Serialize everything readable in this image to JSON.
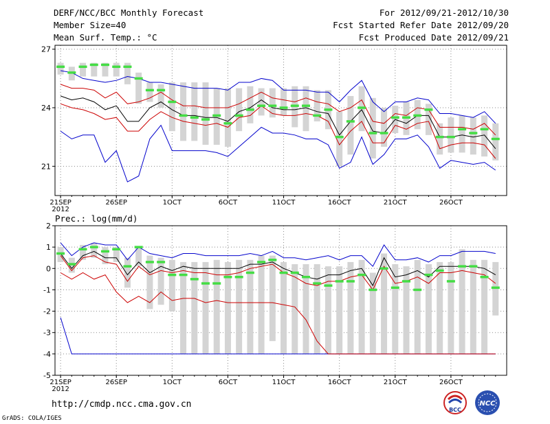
{
  "header": {
    "title": "DERF/NCC/BCC Monthly Forecast",
    "member_size": "Member Size=40",
    "variable": "Mean Surf. Temp.: °C",
    "forecast_period": "For 2012/09/21-2012/10/30",
    "refer_date": "Fcst Started Refer Date 2012/09/20",
    "produced_date": "Fcst Produced Date 2012/09/21"
  },
  "footer": {
    "url": "http://cmdp.ncc.cma.gov.cn",
    "credit": "GrADS: COLA/IGES",
    "logo_bcc_text": "BCC",
    "logo_ncc_text": "NCC"
  },
  "colors": {
    "ensemble_max_min": "#0000cc",
    "spread_lines": "#cc0000",
    "ensemble_mean": "#000000",
    "member_median": "#44dd44",
    "box": "#d4d4d4",
    "grid": "#888888"
  },
  "chart_data": [
    {
      "type": "box-line",
      "title": "Mean Surf. Temp.: °C",
      "xlabel": "",
      "ylabel": "",
      "x_ticks": [
        "21SEP\n2012",
        "26SEP",
        "1OCT",
        "6OCT",
        "11OCT",
        "16OCT",
        "21OCT",
        "26OCT"
      ],
      "x_tick_days": [
        0,
        5,
        10,
        15,
        20,
        25,
        30,
        35
      ],
      "xlim": [
        -0.5,
        40
      ],
      "ylim": [
        19.5,
        27.2
      ],
      "y_ticks": [
        21,
        24,
        27
      ],
      "grid": true,
      "series": [
        {
          "name": "ensemble max",
          "values": [
            25.9,
            25.8,
            25.5,
            25.4,
            25.3,
            25.4,
            25.6,
            25.5,
            25.3,
            25.3,
            25.2,
            25.1,
            25.0,
            25.0,
            25.0,
            24.9,
            25.3,
            25.3,
            25.5,
            25.4,
            24.9,
            24.9,
            24.9,
            24.8,
            24.8,
            24.3,
            24.9,
            25.4,
            24.3,
            23.8,
            24.3,
            24.3,
            24.5,
            24.4,
            23.7,
            23.7,
            23.6,
            23.5,
            23.8,
            23.2
          ]
        },
        {
          "name": "upper red",
          "values": [
            25.2,
            25.0,
            25.0,
            24.9,
            24.5,
            24.8,
            24.2,
            24.3,
            24.5,
            24.8,
            24.4,
            24.1,
            24.1,
            24.0,
            24.0,
            24.0,
            24.2,
            24.5,
            24.8,
            24.5,
            24.4,
            24.3,
            24.5,
            24.3,
            24.2,
            23.8,
            24.0,
            24.4,
            23.3,
            23.2,
            23.7,
            23.6,
            24.0,
            23.9,
            23.0,
            23.0,
            23.0,
            22.9,
            23.2,
            22.6
          ]
        },
        {
          "name": "ensemble mean",
          "values": [
            24.6,
            24.4,
            24.5,
            24.3,
            23.9,
            24.1,
            23.3,
            23.3,
            24.0,
            24.3,
            23.9,
            23.6,
            23.6,
            23.5,
            23.5,
            23.3,
            23.8,
            24.0,
            24.4,
            24.0,
            23.9,
            23.9,
            24.0,
            23.8,
            23.7,
            22.6,
            23.3,
            23.9,
            22.8,
            22.7,
            23.4,
            23.2,
            23.6,
            23.6,
            22.5,
            22.5,
            22.6,
            22.5,
            22.6,
            21.9
          ]
        },
        {
          "name": "lower red",
          "values": [
            24.2,
            24.0,
            23.9,
            23.7,
            23.4,
            23.5,
            22.8,
            22.8,
            23.4,
            23.8,
            23.5,
            23.3,
            23.2,
            23.1,
            23.2,
            23.0,
            23.5,
            23.6,
            24.1,
            23.7,
            23.6,
            23.6,
            23.7,
            23.6,
            23.3,
            22.1,
            22.8,
            23.3,
            22.2,
            22.2,
            23.1,
            22.9,
            23.2,
            23.3,
            21.9,
            22.1,
            22.2,
            22.2,
            22.1,
            21.4
          ]
        },
        {
          "name": "ensemble min",
          "values": [
            22.8,
            22.4,
            22.6,
            22.6,
            21.2,
            21.8,
            20.2,
            20.5,
            22.4,
            23.1,
            21.8,
            21.8,
            21.8,
            21.8,
            21.7,
            21.5,
            22.0,
            22.5,
            23.0,
            22.7,
            22.7,
            22.6,
            22.4,
            22.4,
            22.1,
            20.9,
            21.2,
            22.5,
            21.1,
            21.6,
            22.4,
            22.4,
            22.6,
            22.0,
            20.9,
            21.3,
            21.2,
            21.1,
            21.2,
            20.8
          ]
        },
        {
          "name": "member median",
          "values": [
            26.1,
            25.8,
            26.1,
            26.2,
            26.2,
            26.1,
            26.1,
            25.5,
            24.9,
            24.9,
            24.3,
            23.6,
            23.5,
            23.4,
            23.6,
            23.2,
            23.6,
            23.9,
            24.1,
            24.1,
            24.0,
            24.1,
            24.1,
            23.6,
            23.9,
            22.5,
            23.3,
            24.0,
            22.7,
            22.7,
            23.5,
            23.5,
            23.6,
            23.9,
            22.5,
            22.5,
            22.9,
            22.7,
            22.9,
            22.4
          ]
        },
        {
          "name": "box upper",
          "values": [
            26.3,
            26.1,
            26.3,
            26.3,
            26.3,
            26.3,
            26.3,
            25.8,
            25.3,
            25.2,
            25.3,
            25.3,
            25.3,
            25.3,
            25.0,
            25.0,
            25.0,
            25.1,
            25.0,
            25.0,
            25.0,
            25.1,
            25.1,
            24.9,
            24.9,
            23.8,
            24.6,
            25.1,
            24.5,
            24.0,
            24.1,
            24.3,
            24.4,
            24.2,
            23.2,
            23.5,
            23.6,
            23.5,
            23.6,
            23.2
          ]
        },
        {
          "name": "box lower",
          "values": [
            25.7,
            25.4,
            25.6,
            25.6,
            25.6,
            25.6,
            25.2,
            24.2,
            24.3,
            24.0,
            22.8,
            22.3,
            22.3,
            22.1,
            22.1,
            22.0,
            22.8,
            23.2,
            23.6,
            23.5,
            23.6,
            23.0,
            22.8,
            23.3,
            22.9,
            21.0,
            21.6,
            22.8,
            21.4,
            22.0,
            22.7,
            22.6,
            22.9,
            22.6,
            21.6,
            21.7,
            21.7,
            21.6,
            21.5,
            21.3
          ]
        }
      ]
    },
    {
      "type": "box-line",
      "title": "Prec.: log(mm/d)",
      "xlabel": "",
      "ylabel": "",
      "x_ticks": [
        "21SEP\n2012",
        "26SEP",
        "1OCT",
        "6OCT",
        "11OCT",
        "16OCT",
        "21OCT",
        "26OCT"
      ],
      "x_tick_days": [
        0,
        5,
        10,
        15,
        20,
        25,
        30,
        35
      ],
      "xlim": [
        -0.5,
        40
      ],
      "ylim": [
        -5,
        2
      ],
      "y_ticks": [
        -5,
        -4,
        -3,
        -2,
        -1,
        0,
        1,
        2
      ],
      "grid": true,
      "series": [
        {
          "name": "ensemble max",
          "values": [
            1.2,
            0.6,
            1.0,
            1.2,
            1.1,
            1.1,
            0.4,
            1.0,
            0.7,
            0.6,
            0.5,
            0.7,
            0.7,
            0.6,
            0.6,
            0.6,
            0.6,
            0.7,
            0.6,
            0.8,
            0.5,
            0.5,
            0.4,
            0.5,
            0.6,
            0.4,
            0.6,
            0.6,
            0.1,
            1.1,
            0.4,
            0.4,
            0.5,
            0.3,
            0.6,
            0.6,
            0.8,
            0.8,
            0.8,
            0.7
          ]
        },
        {
          "name": "ensemble mean",
          "values": [
            0.7,
            0.0,
            0.6,
            0.8,
            0.5,
            0.5,
            -0.3,
            0.3,
            -0.2,
            0.1,
            -0.1,
            0.1,
            0.0,
            0.0,
            0.0,
            0.0,
            0.0,
            0.2,
            0.2,
            0.3,
            0.0,
            -0.2,
            -0.4,
            -0.5,
            -0.3,
            -0.3,
            -0.1,
            0.0,
            -0.8,
            0.5,
            -0.4,
            -0.3,
            -0.1,
            -0.4,
            0.1,
            0.1,
            0.1,
            0.1,
            0.0,
            -0.3
          ]
        },
        {
          "name": "upper red",
          "values": [
            0.6,
            -0.1,
            0.5,
            0.6,
            0.3,
            0.2,
            -0.6,
            0.1,
            -0.3,
            -0.1,
            -0.2,
            -0.1,
            -0.2,
            -0.2,
            -0.3,
            -0.3,
            -0.2,
            0.0,
            0.1,
            0.2,
            -0.2,
            -0.4,
            -0.7,
            -0.8,
            -0.6,
            -0.6,
            -0.4,
            -0.3,
            -1.0,
            0.1,
            -0.7,
            -0.6,
            -0.4,
            -0.7,
            -0.2,
            -0.2,
            -0.1,
            -0.2,
            -0.3,
            -0.7
          ]
        },
        {
          "name": "lower red",
          "values": [
            -0.2,
            -0.5,
            -0.2,
            -0.5,
            -0.3,
            -1.1,
            -1.6,
            -1.3,
            -1.6,
            -1.1,
            -1.5,
            -1.4,
            -1.4,
            -1.6,
            -1.5,
            -1.6,
            -1.6,
            -1.6,
            -1.6,
            -1.6,
            -1.7,
            -1.8,
            -2.4,
            -3.4,
            -4.0,
            -4.0,
            -4.0,
            -4.0,
            -4.0,
            -4.0,
            -4.0,
            -4.0,
            -4.0,
            -4.0,
            -4.0,
            -4.0,
            -4.0,
            -4.0,
            -4.0,
            -4.0
          ]
        },
        {
          "name": "ensemble min",
          "values": [
            -2.3,
            -4.0,
            -4.0,
            -4.0,
            -4.0,
            -4.0,
            -4.0,
            -4.0,
            -4.0,
            -4.0,
            -4.0,
            -4.0,
            -4.0,
            -4.0,
            -4.0,
            -4.0,
            -4.0,
            -4.0,
            -4.0,
            -4.0,
            -4.0,
            -4.0,
            -4.0,
            -4.0,
            -4.0,
            -4.0,
            -4.0,
            -4.0,
            -4.0,
            -4.0,
            -4.0,
            -4.0,
            -4.0,
            -4.0,
            -4.0,
            -4.0,
            -4.0,
            -4.0,
            -4.0,
            -4.0
          ]
        },
        {
          "name": "member median",
          "values": [
            0.7,
            0.2,
            0.9,
            1.0,
            0.8,
            0.9,
            0.1,
            1.0,
            0.3,
            0.3,
            -0.3,
            -0.3,
            -0.5,
            -0.7,
            -0.7,
            -0.4,
            -0.4,
            -0.2,
            0.3,
            0.4,
            -0.2,
            -0.2,
            -0.4,
            -0.7,
            -0.8,
            -0.6,
            -0.6,
            -0.3,
            -1.0,
            0.0,
            -0.9,
            -0.6,
            -1.0,
            -0.3,
            -0.1,
            -0.6,
            0.1,
            0.1,
            -0.4,
            -0.9
          ]
        },
        {
          "name": "box upper",
          "values": [
            1.0,
            0.5,
            1.1,
            1.2,
            1.0,
            1.0,
            0.5,
            1.0,
            0.6,
            0.5,
            0.4,
            0.3,
            0.3,
            0.3,
            0.4,
            0.3,
            0.4,
            0.4,
            0.6,
            0.6,
            0.3,
            0.2,
            0.2,
            0.2,
            0.1,
            0.1,
            0.3,
            0.4,
            -0.2,
            0.7,
            0.2,
            0.1,
            0.4,
            0.2,
            0.3,
            0.3,
            0.9,
            0.4,
            0.4,
            0.3
          ]
        },
        {
          "name": "box lower",
          "values": [
            0.3,
            -0.2,
            0.4,
            0.5,
            0.2,
            0.3,
            -0.9,
            0.1,
            -1.9,
            -1.7,
            -2.0,
            -4.0,
            -4.0,
            -4.0,
            -4.0,
            -4.0,
            -4.0,
            -4.0,
            -4.0,
            -3.4,
            -4.0,
            -4.0,
            -4.0,
            -4.0,
            -4.0,
            -4.0,
            -4.0,
            -4.0,
            -4.0,
            -4.0,
            -4.0,
            -4.0,
            -4.0,
            -4.0,
            -4.0,
            -4.0,
            -4.0,
            -4.0,
            -4.0,
            -2.2
          ]
        }
      ]
    }
  ]
}
